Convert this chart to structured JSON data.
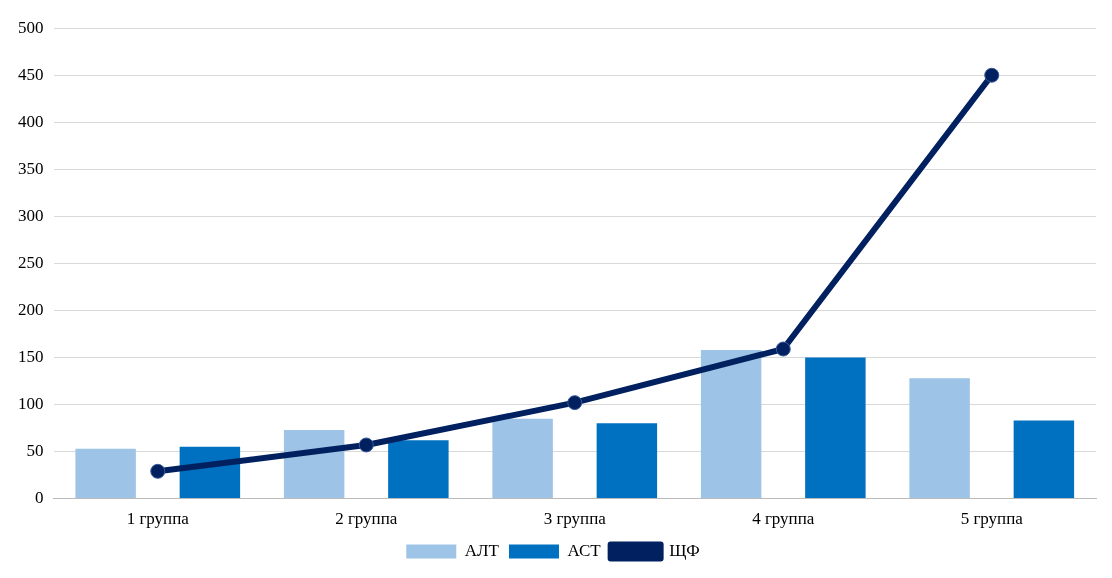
{
  "chart_data": {
    "type": "bar",
    "categories": [
      "1 группа",
      "2 группа",
      "3 группа",
      "4 группа",
      "5 группа"
    ],
    "series": [
      {
        "name": "АЛТ",
        "color": "#9dc3e6",
        "values": [
          53,
          73,
          85,
          158,
          128
        ]
      },
      {
        "name": "АСТ",
        "color": "#0070c0",
        "values": [
          55,
          62,
          80,
          150,
          83
        ]
      },
      {
        "name": "ЩФ",
        "type": "line",
        "color": "#002060",
        "values": [
          29,
          57,
          102,
          159,
          450
        ]
      }
    ],
    "ylim": [
      0,
      500
    ],
    "yticks": [
      0,
      50,
      100,
      150,
      200,
      250,
      300,
      350,
      400,
      450,
      500
    ],
    "grid": "y",
    "legend": "bottom",
    "marker": "circle"
  }
}
